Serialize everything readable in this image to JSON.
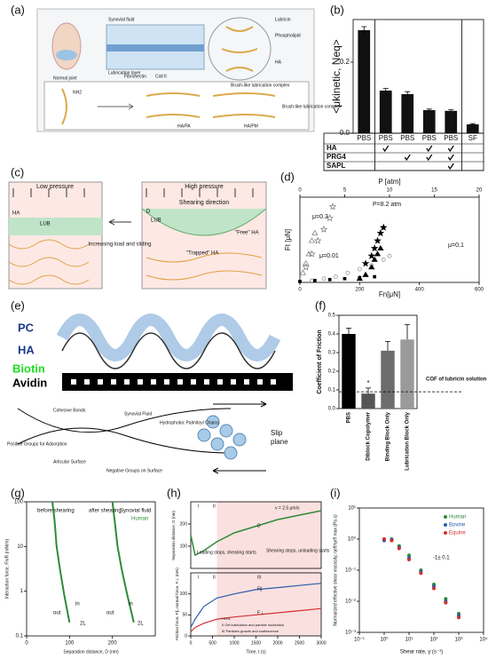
{
  "panels": {
    "a": {
      "label": "(a)",
      "texts": [
        "Synovial fluid",
        "Lubrication layer",
        "Normal joint",
        "Fibronectin",
        "Coll II",
        "Lubricin",
        "Phospholipid",
        "HA",
        "Brush-like lubrication complex",
        "NH2",
        "HA/PA",
        "HA/PM",
        "Brush-like lubrication complex"
      ]
    },
    "b": {
      "label": "(b)",
      "ylabel": "<μkinetic, Neq>",
      "categories": [
        "PBS",
        "PBS",
        "PBS",
        "PBS",
        "PBS",
        "SF"
      ],
      "values": [
        0.29,
        0.12,
        0.11,
        0.065,
        0.063,
        0.025
      ],
      "errors": [
        0.01,
        0.006,
        0.007,
        0.003,
        0.003,
        0.002
      ],
      "ylim": [
        0,
        0.32
      ],
      "yticks": [
        {
          "value": 0,
          "label": "0.0"
        },
        {
          "value": 0.2,
          "label": "0.2"
        }
      ],
      "color": "#111111",
      "rows": [
        {
          "name": "HA",
          "checks": [
            false,
            true,
            false,
            true,
            true,
            false
          ]
        },
        {
          "name": "PRG4",
          "checks": [
            false,
            false,
            true,
            true,
            true,
            false
          ]
        },
        {
          "name": "SAPL",
          "checks": [
            false,
            false,
            false,
            false,
            true,
            false
          ]
        }
      ]
    },
    "c": {
      "label": "(c)",
      "texts": [
        "Low pressure",
        "High pressure",
        "Shearing direction",
        "HA",
        "LUB",
        "LUB",
        "D",
        "Increasing load and sliding",
        "\"Trapped\" HA",
        "\"Free\" HA"
      ]
    },
    "d": {
      "label": "(d)",
      "xlabel": "Fn[μN]",
      "ylabel": "Ft [μN]",
      "toplabel": "P [atm]",
      "xlim": [
        0,
        600
      ],
      "xticks": [
        0,
        200,
        400,
        600
      ],
      "ylim": [
        0,
        45
      ],
      "toplim": [
        0,
        20
      ],
      "topticks": [
        0,
        5,
        10,
        15,
        20
      ],
      "annotations": [
        "P=8.2 atm",
        "μ=0.3",
        "μ=0.01",
        "μ=0.1"
      ],
      "series": [
        {
          "marker": "star-open",
          "color": "#777777",
          "x": [
            20,
            40,
            60,
            80,
            100,
            110
          ],
          "values": [
            8,
            15,
            22,
            28,
            34,
            40
          ]
        },
        {
          "marker": "triangle-open",
          "color": "#777777",
          "x": [
            10,
            20,
            30,
            40,
            50
          ],
          "values": [
            5,
            10,
            15,
            22,
            26
          ]
        },
        {
          "marker": "circle-open",
          "color": "#888888",
          "x": [
            40,
            80,
            120,
            160,
            200,
            240,
            280,
            300
          ],
          "values": [
            1,
            2,
            3,
            5,
            7,
            9,
            12,
            14
          ]
        },
        {
          "marker": "star",
          "color": "#000000",
          "x": [
            220,
            240,
            250,
            260,
            270,
            280
          ],
          "values": [
            10,
            14,
            18,
            22,
            26,
            29
          ]
        },
        {
          "marker": "triangle",
          "color": "#000000",
          "x": [
            200,
            220,
            240,
            250,
            260,
            270
          ],
          "values": [
            2,
            4,
            8,
            12,
            15,
            18
          ]
        },
        {
          "marker": "square",
          "color": "#000000",
          "x": [
            0,
            50,
            100,
            150,
            200,
            250
          ],
          "values": [
            0.5,
            1,
            1.5,
            2,
            2.5,
            3
          ]
        }
      ]
    },
    "e": {
      "label": "(e)",
      "layers": [
        "PC",
        "HA",
        "Biotin",
        "Avidin"
      ],
      "texts": [
        "Cohesive Bonds",
        "Positive Groups for Adsorption",
        "Articular Surface",
        "Negative Groups on Surface",
        "Synovial Fluid",
        "Hydrophobic Palmitoyl Chains",
        "Slip",
        "plane"
      ]
    },
    "f": {
      "label": "(f)",
      "ylabel": "Coefficient of Friction",
      "categories": [
        "PBS",
        "Diblock Copolymer",
        "Binding Block Only",
        "Lubrication Block Only"
      ],
      "values": [
        0.4,
        0.08,
        0.31,
        0.37
      ],
      "errors": [
        0.03,
        0.03,
        0.05,
        0.08
      ],
      "colors": [
        "#000000",
        "#555555",
        "#6d6d6d",
        "#9a9a9a"
      ],
      "ylim": [
        0,
        0.5
      ],
      "yticks": [
        {
          "value": 0,
          "label": "0.0"
        },
        {
          "value": 0.1,
          "label": "0.1"
        },
        {
          "value": 0.2,
          "label": "0.2"
        },
        {
          "value": 0.3,
          "label": "0.3"
        },
        {
          "value": 0.4,
          "label": "0.4"
        },
        {
          "value": 0.5,
          "label": "0.5"
        }
      ],
      "reference": 0.09,
      "annotation": "COF of lubricin solution",
      "significance": "*"
    },
    "g": {
      "label": "(g)",
      "ylabel": "Interaction force, Fn/R (mN/m)",
      "xlabel": "Separation distance, D (nm)",
      "xlim": [
        0,
        300
      ],
      "xticks": [
        0,
        100,
        200
      ],
      "ylim": [
        0.1,
        100
      ],
      "yticks": [
        0.1,
        1,
        10,
        100
      ],
      "texts": [
        "before shearing",
        "after shearing",
        "Synovial fluid",
        "Human",
        "out",
        "in",
        "out",
        "in",
        "2L",
        "2L"
      ],
      "series": [
        {
          "name": "before",
          "color": "#2e8b3a",
          "x": [
            60,
            65,
            70,
            78,
            88,
            100
          ],
          "values": [
            100,
            40,
            10,
            3,
            0.8,
            0.2
          ]
        },
        {
          "name": "after",
          "color": "#2e8b3a",
          "x": [
            200,
            205,
            212,
            222,
            235,
            250
          ],
          "values": [
            100,
            40,
            10,
            3,
            0.8,
            0.2
          ]
        }
      ]
    },
    "h": {
      "label": "(h)",
      "ylabel_top": "Separation distance, D (nm)",
      "ylabel_bottom": "Friction force, F∥, normal force, F⊥ (mN)",
      "xlabel": "Time, t (s)",
      "xlim": [
        0,
        3000
      ],
      "xticks": [
        0,
        500,
        1000,
        1500,
        2000,
        2500,
        3000
      ],
      "ylim_top": [
        0,
        300
      ],
      "yticks_top": [
        100,
        200
      ],
      "ylim_bottom": [
        0,
        150
      ],
      "yticks_bottom": [
        0,
        50,
        100
      ],
      "texts": [
        "I",
        "II",
        "I",
        "II",
        "III",
        "v = 2.5 μm/s",
        "D",
        "Loading stops, shearing starts",
        "Shearing stops, unloading starts",
        "F∥",
        "F⊥",
        "I EHL",
        "II Gel lubrication and particle nucleation",
        "III Particles growth and coalescence"
      ],
      "x": [
        0,
        100,
        300,
        600,
        1000,
        1500,
        2000,
        2500,
        3000
      ],
      "D": [
        150,
        60,
        80,
        120,
        160,
        190,
        220,
        240,
        260
      ],
      "F_par": [
        20,
        40,
        70,
        90,
        100,
        110,
        115,
        120,
        125
      ],
      "F_perp": [
        10,
        20,
        30,
        40,
        45,
        50,
        55,
        60,
        65
      ]
    },
    "i": {
      "label": "(i)",
      "ylabel": "Normalized effective shear viscosity, ηeff/ηeff max (Pa.s)",
      "xlabel": "Shear rate, γ̇ (s⁻¹)",
      "xlim": [
        0.1,
        10000
      ],
      "xticks": [
        {
          "value": 0.1,
          "label": "10⁻¹"
        },
        {
          "value": 1,
          "label": "10⁰"
        },
        {
          "value": 10,
          "label": "10¹"
        },
        {
          "value": 100,
          "label": "10²"
        },
        {
          "value": 1000,
          "label": "10³"
        },
        {
          "value": 10000,
          "label": "10⁴"
        }
      ],
      "ylim": [
        0.001,
        10
      ],
      "yticks": [
        {
          "value": 0.001,
          "label": "10⁻³"
        },
        {
          "value": 0.01,
          "label": "10⁻²"
        },
        {
          "value": 0.1,
          "label": "10⁻¹"
        },
        {
          "value": 1,
          "label": "10⁰"
        },
        {
          "value": 10,
          "label": "10¹"
        }
      ],
      "annotation": "-1± 0.1",
      "x": [
        1,
        2,
        4,
        10,
        30,
        100,
        300,
        1000
      ],
      "series": [
        {
          "name": "Human",
          "color": "#2e8b3a",
          "values": [
            1.0,
            1.0,
            0.6,
            0.3,
            0.1,
            0.035,
            0.012,
            0.004
          ]
        },
        {
          "name": "Bovine",
          "color": "#2a5caa",
          "values": [
            0.9,
            0.95,
            0.55,
            0.25,
            0.09,
            0.03,
            0.01,
            0.0035
          ]
        },
        {
          "name": "Equine",
          "color": "#d03030",
          "values": [
            1.0,
            0.9,
            0.5,
            0.22,
            0.08,
            0.026,
            0.009,
            0.003
          ]
        }
      ]
    }
  }
}
